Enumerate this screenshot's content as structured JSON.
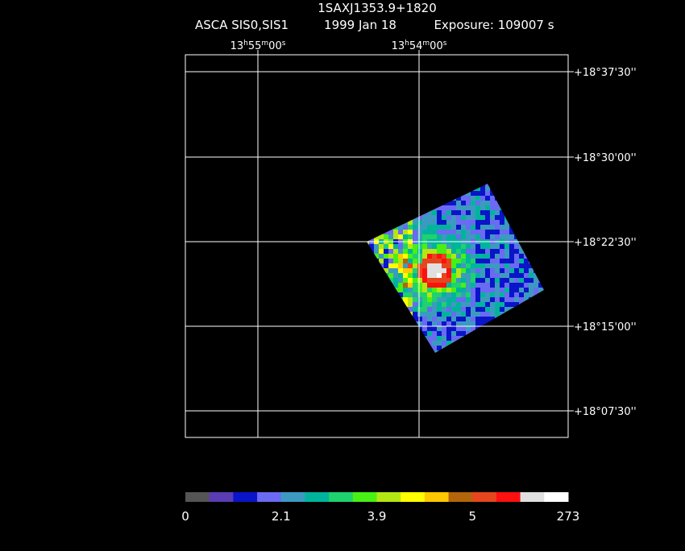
{
  "header": {
    "title": "1SAXJ1353.9+1820",
    "instrument": "ASCA SIS0,SIS1",
    "date": "1999 Jan 18",
    "exposure": "Exposure: 109007 s"
  },
  "ra_labels": [
    [
      "13",
      "h",
      "55",
      "m",
      "00",
      "s"
    ],
    [
      "13",
      "h",
      "54",
      "m",
      "00",
      "s"
    ]
  ],
  "dec_labels": [
    "+18°37'30''",
    "+18°30'00''",
    "+18°22'30''",
    "+18°15'00''",
    "+18°07'30''"
  ],
  "colorbar": {
    "colors": [
      "#555555",
      "#5a3cb4",
      "#0a14c8",
      "#6a6af2",
      "#3c9ac0",
      "#00b49c",
      "#1ed26e",
      "#48f014",
      "#b4e614",
      "#ffff00",
      "#ffc800",
      "#b4640a",
      "#e6461e",
      "#ff1010",
      "#e0e0e0",
      "#ffffff"
    ],
    "labels": [
      "0",
      "2.1",
      "3.9",
      "5",
      "273"
    ]
  }
}
